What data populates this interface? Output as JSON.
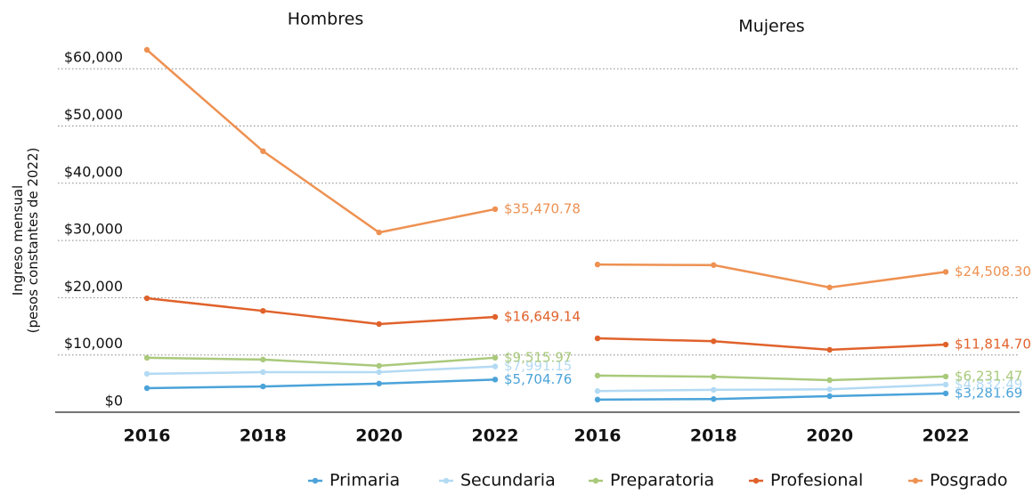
{
  "chart_data": {
    "type": "line",
    "ylabel": [
      "Ingreso mensual",
      "(pesos constantes de 2022)"
    ],
    "ylim": [
      0,
      63300
    ],
    "yticks": [
      {
        "value": 0,
        "label": "$0"
      },
      {
        "value": 10000,
        "label": "$10,000"
      },
      {
        "value": 20000,
        "label": "$20,000"
      },
      {
        "value": 30000,
        "label": "$30,000"
      },
      {
        "value": 40000,
        "label": "$40,000"
      },
      {
        "value": 50000,
        "label": "$50,000"
      },
      {
        "value": 60000,
        "label": "$60,000"
      }
    ],
    "grid": true,
    "legend": "bottom-right",
    "series": [
      {
        "name": "Primaria",
        "color": "#4ba3d9"
      },
      {
        "name": "Secundaria",
        "color": "#b3daf3"
      },
      {
        "name": "Preparatoria",
        "color": "#a9c97b"
      },
      {
        "name": "Profesional",
        "color": "#e0622b"
      },
      {
        "name": "Posgrado",
        "color": "#ee9152"
      }
    ],
    "panels": [
      {
        "title": "Hombres",
        "categories": [
          "2016",
          "2018",
          "2020",
          "2022"
        ],
        "series": [
          {
            "values": [
              4200,
              4500,
              5000,
              5704.76
            ],
            "value_labels": [
              null,
              null,
              null,
              "$5,704.76"
            ]
          },
          {
            "values": [
              6700,
              7000,
              7000,
              7991.15
            ],
            "value_labels": [
              null,
              null,
              null,
              "$7,991.15"
            ]
          },
          {
            "values": [
              9500,
              9200,
              8100,
              9515.97
            ],
            "value_labels": [
              null,
              null,
              null,
              "$9,515.97"
            ]
          },
          {
            "values": [
              19900,
              17700,
              15400,
              16649.14
            ],
            "value_labels": [
              null,
              null,
              null,
              "$16,649.14"
            ]
          },
          {
            "values": [
              63300,
              45600,
              31400,
              35470.78
            ],
            "value_labels": [
              null,
              null,
              null,
              "$35,470.78"
            ]
          }
        ]
      },
      {
        "title": "Mujeres",
        "categories": [
          "2016",
          "2018",
          "2020",
          "2022"
        ],
        "series": [
          {
            "values": [
              2200,
              2300,
              2800,
              3281.69
            ],
            "value_labels": [
              null,
              null,
              null,
              "$3,281.69"
            ]
          },
          {
            "values": [
              3700,
              3900,
              4000,
              4832.49
            ],
            "value_labels": [
              null,
              null,
              null,
              "$4,832.49"
            ]
          },
          {
            "values": [
              6400,
              6200,
              5600,
              6231.47
            ],
            "value_labels": [
              null,
              null,
              null,
              "$6,231.47"
            ]
          },
          {
            "values": [
              12900,
              12400,
              10900,
              11814.7
            ],
            "value_labels": [
              null,
              null,
              null,
              "$11,814.70"
            ]
          },
          {
            "values": [
              25800,
              25700,
              21800,
              24508.3
            ],
            "value_labels": [
              null,
              null,
              null,
              "$24,508.30"
            ]
          }
        ]
      }
    ]
  }
}
